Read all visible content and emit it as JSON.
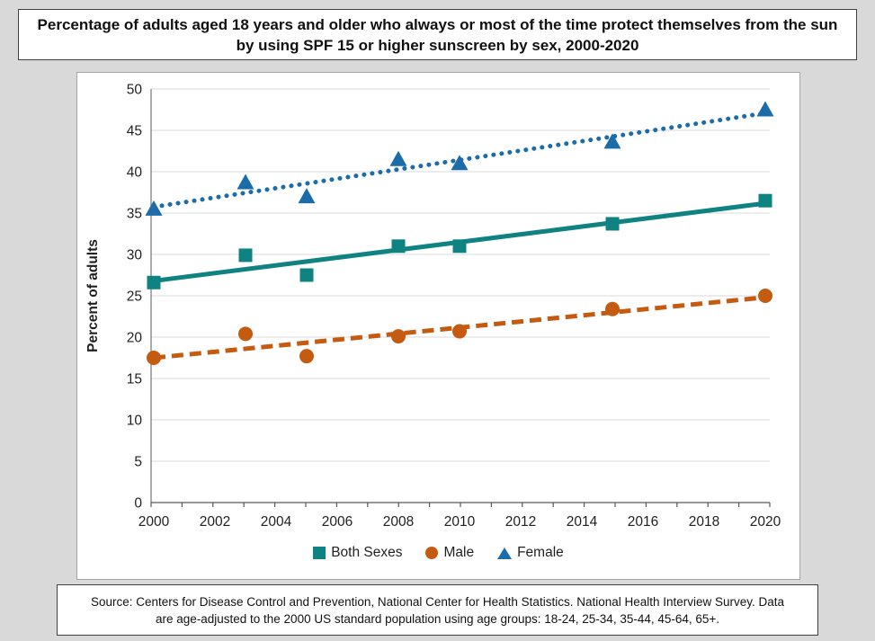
{
  "title": "Percentage of adults aged 18 years and older who always or most of the time protect themselves from the sun by using SPF 15 or higher sunscreen by sex, 2000-2020",
  "source": "Source: Centers for Disease Control and Prevention, National Center for Health Statistics. National Health Interview Survey. Data are age-adjusted to the 2000 US standard population using age groups: 18-24, 25-34, 35-44, 45-64, 65+.",
  "chart_data": {
    "type": "scatter",
    "subtype": "scatter points with linear trendlines",
    "x": [
      2000,
      2003,
      2005,
      2008,
      2010,
      2015,
      2020
    ],
    "series": [
      {
        "name": "Both Sexes",
        "marker": "square",
        "trendline": "solid",
        "color": "#0E8382",
        "values": [
          26.6,
          29.9,
          27.5,
          31.0,
          31.0,
          33.7,
          36.5
        ]
      },
      {
        "name": "Male",
        "marker": "circle",
        "trendline": "dashed",
        "color": "#C55A11",
        "values": [
          17.5,
          20.4,
          17.7,
          20.1,
          20.7,
          23.4,
          25.0
        ]
      },
      {
        "name": "Female",
        "marker": "triangle",
        "trendline": "dotted",
        "color": "#1B6CA8",
        "values": [
          35.5,
          38.7,
          37.0,
          41.5,
          41.0,
          43.6,
          47.5
        ]
      }
    ],
    "ylabel": "Percent of adults",
    "ylim": [
      0,
      50
    ],
    "y_ticks": [
      0,
      5,
      10,
      15,
      20,
      25,
      30,
      35,
      40,
      45,
      50
    ],
    "x_ticks": [
      2000,
      2002,
      2004,
      2006,
      2008,
      2010,
      2012,
      2014,
      2016,
      2018,
      2020
    ],
    "x_minor_tick_interval": 1,
    "grid": "horizontal",
    "legend_position": "bottom"
  },
  "colors": {
    "page_background": "#D9D9D9",
    "gridline": "#D9D9D9",
    "x_axis_line": "#595959",
    "y_axis_line": "#7F7F7F",
    "tick_text": "#1F1F1F",
    "panel_border": "#A6A6A6",
    "box_border": "#404040"
  }
}
